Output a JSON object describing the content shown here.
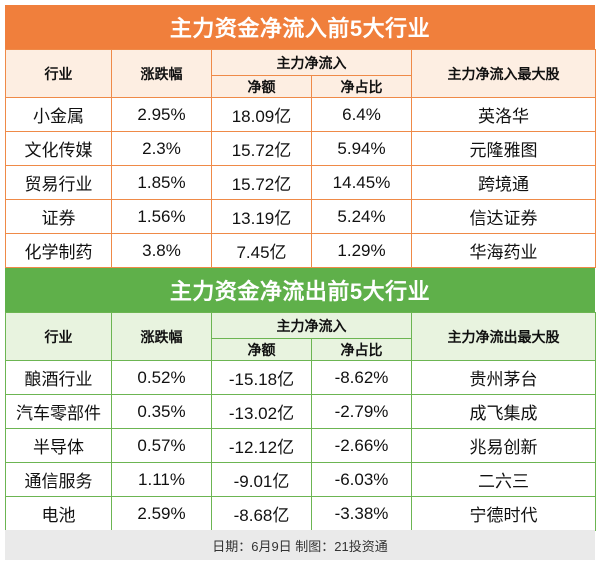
{
  "inflow": {
    "title": "主力资金净流入前5大行业",
    "headers": {
      "industry": "行业",
      "change": "涨跌幅",
      "main_net": "主力净流入",
      "net_amount": "净额",
      "net_ratio": "净占比",
      "top_stock": "主力净流入最大股"
    },
    "rows": [
      {
        "industry": "小金属",
        "change": "2.95%",
        "amount": "18.09亿",
        "ratio": "6.4%",
        "stock": "英洛华"
      },
      {
        "industry": "文化传媒",
        "change": "2.3%",
        "amount": "15.72亿",
        "ratio": "5.94%",
        "stock": "元隆雅图"
      },
      {
        "industry": "贸易行业",
        "change": "1.85%",
        "amount": "15.72亿",
        "ratio": "14.45%",
        "stock": "跨境通"
      },
      {
        "industry": "证券",
        "change": "1.56%",
        "amount": "13.19亿",
        "ratio": "5.24%",
        "stock": "信达证券"
      },
      {
        "industry": "化学制药",
        "change": "3.8%",
        "amount": "7.45亿",
        "ratio": "1.29%",
        "stock": "华海药业"
      }
    ]
  },
  "outflow": {
    "title": "主力资金净流出前5大行业",
    "headers": {
      "industry": "行业",
      "change": "涨跌幅",
      "main_net": "主力净流入",
      "net_amount": "净额",
      "net_ratio": "净占比",
      "top_stock": "主力净流出最大股"
    },
    "rows": [
      {
        "industry": "酿酒行业",
        "change": "0.52%",
        "amount": "-15.18亿",
        "ratio": "-8.62%",
        "stock": "贵州茅台"
      },
      {
        "industry": "汽车零部件",
        "change": "0.35%",
        "amount": "-13.02亿",
        "ratio": "-2.79%",
        "stock": "成飞集成"
      },
      {
        "industry": "半导体",
        "change": "0.57%",
        "amount": "-12.12亿",
        "ratio": "-2.66%",
        "stock": "兆易创新"
      },
      {
        "industry": "通信服务",
        "change": "1.11%",
        "amount": "-9.01亿",
        "ratio": "-6.03%",
        "stock": "二六三"
      },
      {
        "industry": "电池",
        "change": "2.59%",
        "amount": "-8.68亿",
        "ratio": "-3.38%",
        "stock": "宁德时代"
      }
    ]
  },
  "caption": "日期：6月9日 制图：21投资通",
  "colors": {
    "inflow_banner": "#f07f3c",
    "inflow_header_bg": "#fdeee2",
    "outflow_banner": "#5fb04a",
    "outflow_header_bg": "#e8f3df"
  }
}
